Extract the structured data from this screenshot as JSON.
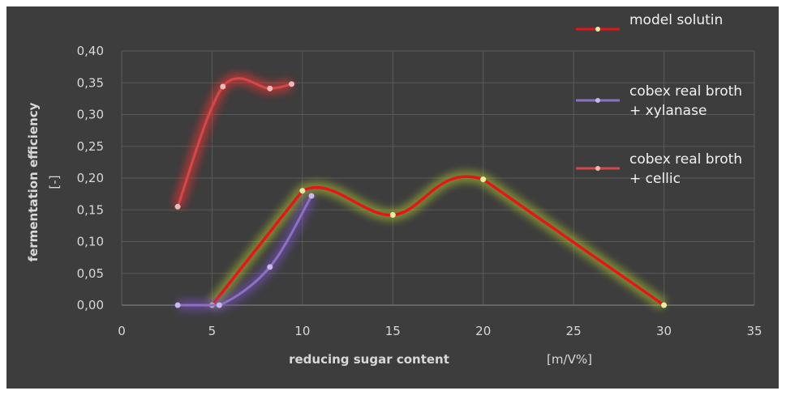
{
  "chart_data": {
    "type": "line",
    "title": "",
    "xlabel": "reducing sugar content",
    "xunit": "[m/V%]",
    "ylabel": "fermentation efficiency",
    "yunit": "[-]",
    "xlim": [
      0,
      35
    ],
    "ylim": [
      0,
      0.4
    ],
    "xticks": [
      "0",
      "5",
      "10",
      "15",
      "20",
      "25",
      "30",
      "35"
    ],
    "yticks": [
      "0,00",
      "0,05",
      "0,10",
      "0,15",
      "0,20",
      "0,25",
      "0,30",
      "0,35",
      "0,40"
    ],
    "grid": true,
    "legend_position": "right",
    "series": [
      {
        "name": "model solutin",
        "color": "#e8141a",
        "marker": "#e8f0a0",
        "glow": "#b4d02a",
        "points": [
          [
            5.0,
            0.0
          ],
          [
            10.0,
            0.18
          ],
          [
            15.0,
            0.142
          ],
          [
            20.0,
            0.198
          ],
          [
            30.0,
            0.0
          ]
        ],
        "smooth": [
          false,
          true,
          true,
          false
        ]
      },
      {
        "name_lines": [
          "cobex real broth",
          "+ xylanase"
        ],
        "color": "#8d6fc4",
        "marker": "#c9b8ee",
        "glow": "#7a52c4",
        "points": [
          [
            3.1,
            0.0
          ],
          [
            5.4,
            0.0
          ],
          [
            8.2,
            0.06
          ],
          [
            10.5,
            0.172
          ]
        ],
        "smooth": [
          false,
          true,
          true
        ]
      },
      {
        "name_lines": [
          "cobex real broth",
          "+ cellic"
        ],
        "color": "#d34848",
        "marker": "#f0b8b8",
        "glow": "#ff3030",
        "points": [
          [
            3.1,
            0.155
          ],
          [
            5.6,
            0.344
          ],
          [
            8.2,
            0.341
          ],
          [
            9.4,
            0.348
          ]
        ],
        "smooth": [
          true,
          true,
          true
        ]
      }
    ]
  }
}
